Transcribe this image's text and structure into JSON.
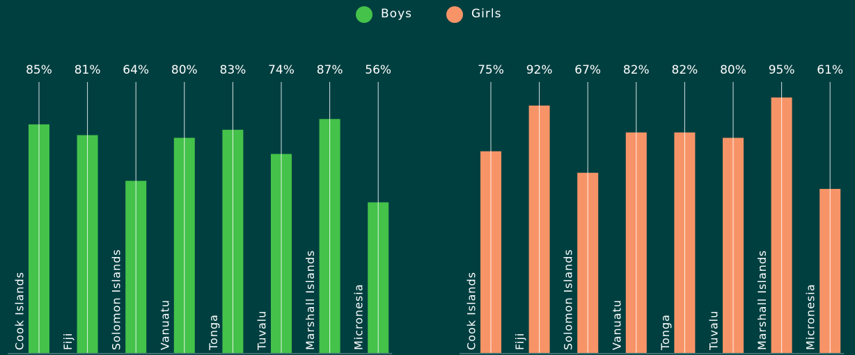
{
  "chart_data": [
    {
      "type": "bar",
      "categories": [
        "Cook Islands",
        "Fiji",
        "Solomon Islands",
        "Vanuatu",
        "Tonga",
        "Tuvalu",
        "Marshall Islands",
        "Micronesia"
      ],
      "series": [
        {
          "name": "Boys",
          "color": "#44c24a",
          "values": [
            85,
            81,
            64,
            80,
            83,
            74,
            87,
            56
          ],
          "value_labels": [
            "85%",
            "81%",
            "64%",
            "80%",
            "83%",
            "74%",
            "87%",
            "56%"
          ]
        }
      ],
      "ylim": [
        0,
        100
      ]
    },
    {
      "type": "bar",
      "categories": [
        "Cook Islands",
        "Fiji",
        "Solomon Islands",
        "Vanuatu",
        "Tonga",
        "Tuvalu",
        "Marshall Islands",
        "Micronesia"
      ],
      "series": [
        {
          "name": "Girls",
          "color": "#f79467",
          "values": [
            75,
            92,
            67,
            82,
            82,
            80,
            95,
            61
          ],
          "value_labels": [
            "75%",
            "92%",
            "67%",
            "82%",
            "82%",
            "80%",
            "95%",
            "61%"
          ]
        }
      ],
      "ylim": [
        0,
        100
      ]
    }
  ]
}
